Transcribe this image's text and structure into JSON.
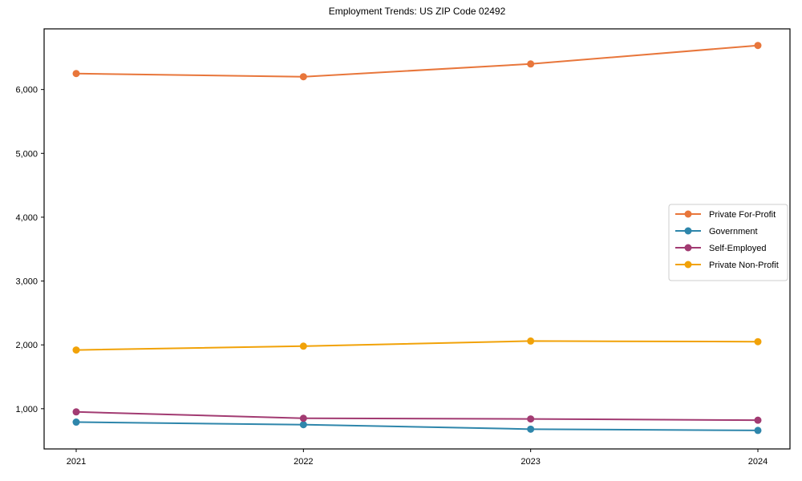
{
  "chart_data": {
    "type": "line",
    "title": "Employment Trends: US ZIP Code 02492",
    "xlabel": "",
    "ylabel": "",
    "categories": [
      "2021",
      "2022",
      "2023",
      "2024"
    ],
    "series": [
      {
        "name": "Private For-Profit",
        "color": "#E8763B",
        "values": [
          6250,
          6200,
          6400,
          6690
        ]
      },
      {
        "name": "Government",
        "color": "#2E86AB",
        "values": [
          790,
          750,
          680,
          660
        ]
      },
      {
        "name": "Self-Employed",
        "color": "#A23B72",
        "values": [
          950,
          850,
          840,
          820
        ]
      },
      {
        "name": "Private Non-Profit",
        "color": "#F1A208",
        "values": [
          1920,
          1980,
          2060,
          2050
        ]
      }
    ],
    "y_ticks": [
      1000,
      2000,
      3000,
      4000,
      5000,
      6000
    ],
    "ylim": [
      370,
      6950
    ],
    "grid": false,
    "marker": "circle",
    "legend_position": "center-right",
    "axis_color": "#000000",
    "legend_border_color": "#cccccc",
    "background_color": "#ffffff"
  }
}
